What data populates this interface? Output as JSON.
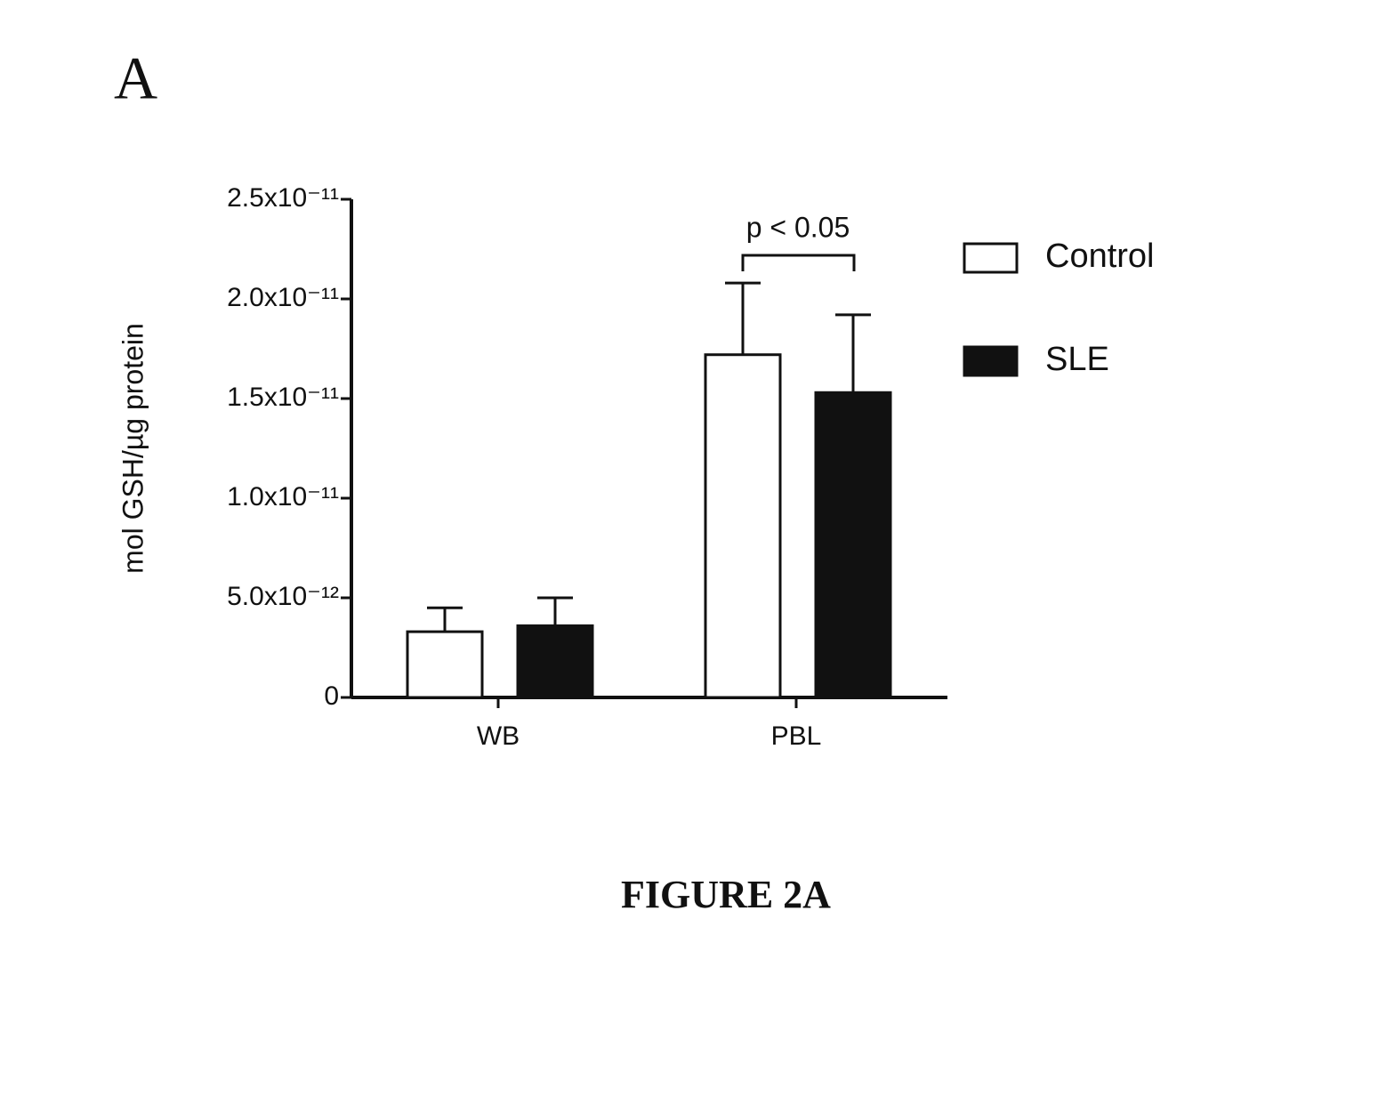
{
  "panel_label": "A",
  "caption": "FIGURE 2A",
  "chart_data": {
    "type": "bar",
    "y_label": "mol GSH/µg protein",
    "categories": [
      "WB",
      "PBL"
    ],
    "series": [
      {
        "name": "Control",
        "color": "#ffffff",
        "values": [
          3.3e-12,
          1.72e-11
        ],
        "errors": [
          1.2e-12,
          3.6e-12
        ]
      },
      {
        "name": "SLE",
        "color": "#111111",
        "values": [
          3.6e-12,
          1.53e-11
        ],
        "errors": [
          1.4e-12,
          3.9e-12
        ]
      }
    ],
    "ylim": [
      0,
      2.5e-11
    ],
    "yticks": [
      0,
      {
        "value": 5e-12,
        "label": "5.0x10⁻¹²"
      },
      {
        "value": 1e-11,
        "label": "1.0x10⁻¹¹"
      },
      {
        "value": 1.5e-11,
        "label": "1.5x10⁻¹¹"
      },
      {
        "value": 2e-11,
        "label": "2.0x10⁻¹¹"
      },
      {
        "value": 2.5e-11,
        "label": "2.5x10⁻¹¹"
      }
    ],
    "annotation": "p < 0.05",
    "legend": "right"
  }
}
